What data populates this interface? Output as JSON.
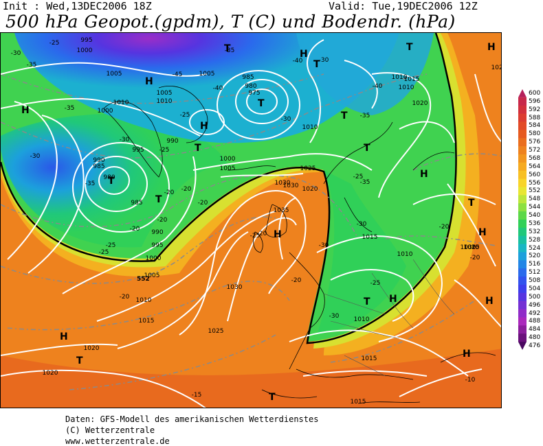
{
  "header": {
    "init": "Init : Wed,13DEC2006 18Z",
    "valid": "Valid: Tue,19DEC2006 12Z",
    "title": "500 hPa Geopot.(gpdm), T (C) und Bodendr. (hPa)"
  },
  "legend": {
    "values": [
      "600",
      "596",
      "592",
      "588",
      "584",
      "580",
      "576",
      "572",
      "568",
      "564",
      "560",
      "556",
      "552",
      "548",
      "544",
      "540",
      "536",
      "532",
      "528",
      "524",
      "520",
      "516",
      "512",
      "508",
      "504",
      "500",
      "496",
      "492",
      "488",
      "484",
      "480",
      "476"
    ],
    "colors": [
      "#b41f5a",
      "#c8284a",
      "#d2303c",
      "#dc3c30",
      "#e24a26",
      "#e65a20",
      "#ea6e1e",
      "#ee821e",
      "#f2961e",
      "#f6aa20",
      "#f8c024",
      "#f8d42a",
      "#e8e632",
      "#bce63a",
      "#8ce040",
      "#5cd848",
      "#30d058",
      "#20c87a",
      "#18c0a0",
      "#18b6c4",
      "#1ca0dc",
      "#2286e6",
      "#2a6aec",
      "#3252ee",
      "#3c3eec",
      "#5634e0",
      "#7430d4",
      "#902cc8",
      "#aa28bc",
      "#8a1c9c",
      "#6a107c",
      "#4a0860"
    ]
  },
  "pressure_labels": [
    "995",
    "1000",
    "1005",
    "1010",
    "1000",
    "1005",
    "1010",
    "985",
    "980",
    "975",
    "1005",
    "1010",
    "1025",
    "1020",
    "1015",
    "1010",
    "1020",
    "1025",
    "1030",
    "995",
    "990",
    "1000",
    "1005",
    "1010",
    "990",
    "985",
    "980",
    "985",
    "990",
    "995",
    "1000",
    "1005",
    "1010",
    "1015",
    "1020",
    "1020",
    "1030",
    "1025",
    "1035",
    "1030",
    "1015",
    "1010",
    "1010",
    "1015",
    "1015",
    "1020",
    "1030",
    "1025",
    "1015"
  ],
  "temp_labels": [
    "-30",
    "-35",
    "-25",
    "-45",
    "-40",
    "-35",
    "-30",
    "-35",
    "-40",
    "-30",
    "-35",
    "-30",
    "-25",
    "-20",
    "-35",
    "-25",
    "-30",
    "-20",
    "-20",
    "-20",
    "-25",
    "-25",
    "-20",
    "-30",
    "-25",
    "-20",
    "-25",
    "-30",
    "-20",
    "-20",
    "-20",
    "-15",
    "-10",
    "-20",
    "-30",
    "-35",
    "-25",
    "-40"
  ],
  "high_label": "H",
  "low_label": "T",
  "contour_552": "552",
  "footer": {
    "line1": "Daten: GFS-Modell des amerikanischen Wetterdienstes",
    "line2": "(C) Wetterzentrale",
    "line3": "www.wetterzentrale.de"
  }
}
